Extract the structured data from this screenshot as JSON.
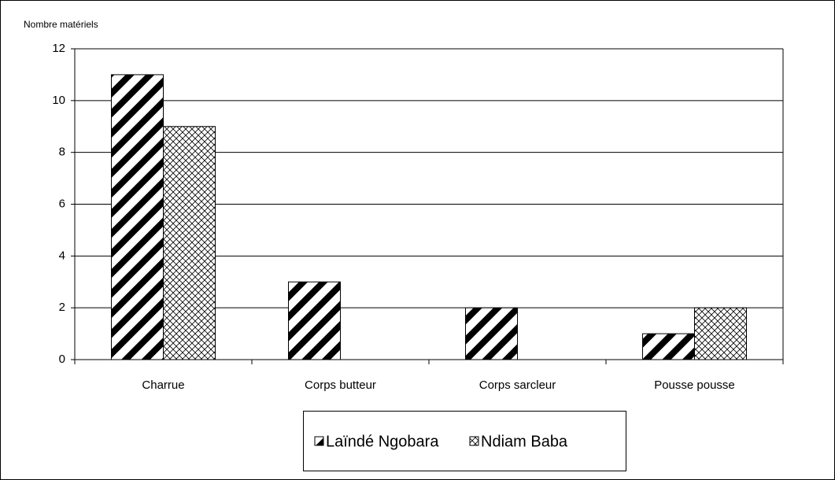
{
  "chart_data": {
    "type": "bar",
    "y_label": "Nombre matériels",
    "categories": [
      "Charrue",
      "Corps butteur",
      "Corps sarcleur",
      "Pousse pousse"
    ],
    "series": [
      {
        "name": "Laïndé Ngobara",
        "color": "#000000",
        "values": [
          11,
          3,
          2,
          1
        ]
      },
      {
        "name": "Ndiam Baba",
        "color": "#000000",
        "values": [
          9,
          0,
          0,
          2
        ]
      }
    ],
    "ylim": [
      0,
      12
    ],
    "yticks": [
      0,
      2,
      4,
      6,
      8,
      10,
      12
    ],
    "grid": true
  }
}
